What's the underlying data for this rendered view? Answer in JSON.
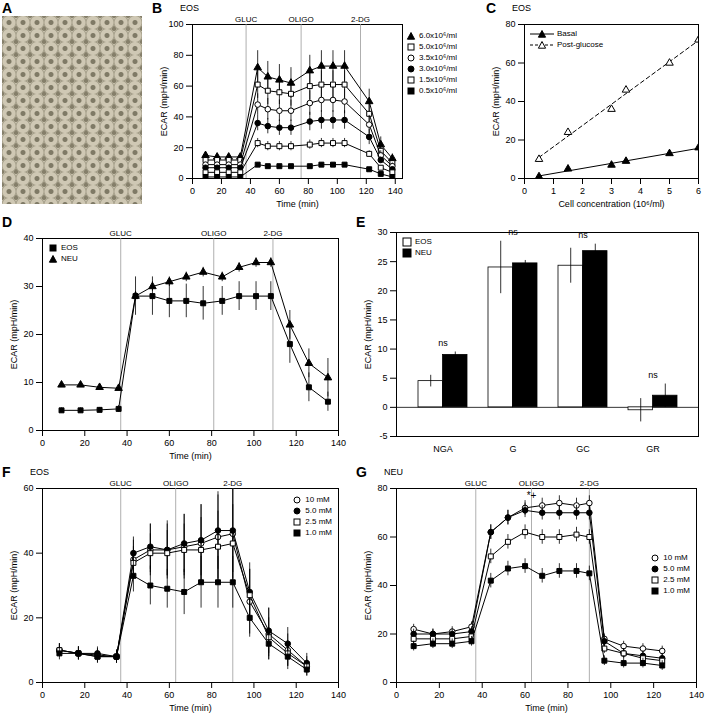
{
  "chart_data": [
    {
      "panel": "A",
      "type": "image"
    },
    {
      "panel": "B",
      "type": "line",
      "title": "EOS",
      "x_label": "Time (min)",
      "y_label": "ECAR (mpH/min)",
      "x": [
        9,
        17,
        25,
        33,
        45,
        52,
        60,
        68,
        81,
        89,
        97,
        105,
        122,
        130,
        138
      ],
      "xlim": [
        0,
        145
      ],
      "xticks": [
        0,
        20,
        40,
        60,
        80,
        100,
        120,
        140
      ],
      "ylim": [
        0,
        100
      ],
      "yticks": [
        0,
        20,
        40,
        60,
        80,
        100
      ],
      "phases": [
        {
          "label": "GLUC",
          "x": 37
        },
        {
          "label": "OLIGO",
          "x": 75
        },
        {
          "label": "2-DG",
          "x": 116
        }
      ],
      "legend": "right",
      "series": [
        {
          "name": "6.0x10⁶/ml",
          "color": "#000000",
          "marker": "triangle",
          "values": [
            15,
            14,
            14,
            14,
            72,
            66,
            64,
            62,
            70,
            73,
            73,
            73,
            50,
            22,
            13
          ],
          "errors": [
            1.5,
            1.5,
            1.5,
            1.5,
            11,
            10,
            10,
            10,
            10,
            10,
            10,
            10,
            8,
            5,
            3
          ]
        },
        {
          "name": "5.0x10⁶/ml",
          "color": "#000000",
          "marker": "square-open",
          "values": [
            12,
            12,
            12,
            12,
            61,
            57,
            56,
            55,
            60,
            61,
            61,
            61,
            42,
            18,
            10
          ],
          "errors": [
            1,
            1,
            1,
            1,
            9,
            9,
            8,
            8,
            9,
            9,
            9,
            9,
            7,
            4,
            2
          ]
        },
        {
          "name": "3.5x10⁶/ml",
          "color": "#000000",
          "marker": "circle-open",
          "values": [
            9,
            9,
            9,
            9,
            48,
            45,
            44,
            44,
            49,
            51,
            51,
            50,
            35,
            15,
            8
          ],
          "errors": [
            1,
            1,
            1,
            1,
            7,
            7,
            7,
            7,
            8,
            8,
            8,
            8,
            6,
            3,
            2
          ]
        },
        {
          "name": "3.0x10⁶/ml",
          "color": "#000000",
          "marker": "circle",
          "values": [
            7,
            7,
            7,
            7,
            36,
            34,
            33,
            33,
            37,
            38,
            38,
            38,
            27,
            12,
            6
          ],
          "errors": [
            1,
            1,
            1,
            1,
            5,
            5,
            5,
            5,
            6,
            6,
            6,
            6,
            5,
            2,
            1
          ]
        },
        {
          "name": "1.5x10⁶/ml",
          "color": "#000000",
          "marker": "square-open",
          "values": [
            4,
            4,
            4,
            4,
            23,
            21,
            21,
            21,
            22,
            23,
            23,
            23,
            16,
            7,
            4
          ],
          "errors": [
            0.5,
            0.5,
            0.5,
            0.5,
            3,
            3,
            3,
            3,
            3,
            3,
            3,
            3,
            2,
            1,
            0.5
          ]
        },
        {
          "name": "0.5x10⁶/ml",
          "color": "#000000",
          "marker": "square",
          "values": [
            1,
            1,
            1,
            1,
            9,
            8,
            8,
            8,
            8,
            9,
            9,
            9,
            6,
            3,
            1
          ],
          "errors": [
            0.3,
            0.3,
            0.3,
            0.3,
            1,
            1,
            1,
            1,
            1,
            1,
            1,
            1,
            1,
            0.5,
            0.3
          ]
        }
      ]
    },
    {
      "panel": "C",
      "type": "scatter",
      "title": "EOS",
      "x_label": "Cell concentration (10⁶/ml)",
      "y_label": "ECAR (mpH/min)",
      "x": [
        0.5,
        1.5,
        3,
        3.5,
        5,
        6
      ],
      "xlim": [
        0,
        6
      ],
      "xticks": [
        0,
        1,
        2,
        3,
        4,
        5,
        6
      ],
      "ylim": [
        0,
        80
      ],
      "yticks": [
        0,
        20,
        40,
        60,
        80
      ],
      "legend": "top-left",
      "series": [
        {
          "name": "Basal",
          "color": "#000000",
          "marker": "triangle",
          "line_style": "solid",
          "values": [
            1,
            5,
            7,
            9,
            13,
            16
          ]
        },
        {
          "name": "Post-glucose",
          "color": "#000000",
          "marker": "triangle-open",
          "line_style": "dashed",
          "values": [
            10,
            24,
            36,
            46,
            60,
            72
          ]
        }
      ]
    },
    {
      "panel": "D",
      "type": "line",
      "x_label": "Time (min)",
      "y_label": "ECAR (mpH/min)",
      "x": [
        9,
        18,
        27,
        36,
        44,
        52,
        60,
        68,
        76,
        85,
        93,
        101,
        108,
        117,
        126,
        135
      ],
      "xlim": [
        0,
        140
      ],
      "xticks": [
        0,
        20,
        40,
        60,
        80,
        100,
        120,
        140
      ],
      "ylim": [
        0,
        40
      ],
      "yticks": [
        0,
        10,
        20,
        30,
        40
      ],
      "phases": [
        {
          "label": "GLUC",
          "x": 37
        },
        {
          "label": "OLIGO",
          "x": 81
        },
        {
          "label": "2-DG",
          "x": 109
        }
      ],
      "legend": "top-left",
      "series": [
        {
          "name": "EOS",
          "color": "#000000",
          "marker": "square",
          "values": [
            4.2,
            4.2,
            4.3,
            4.5,
            28,
            28,
            27,
            27,
            26.5,
            27,
            28,
            28,
            28,
            18,
            9,
            6
          ],
          "errors": [
            0.5,
            0.5,
            0.5,
            0.7,
            4,
            4,
            3.5,
            3.5,
            3.5,
            3,
            3,
            3,
            3,
            4,
            3,
            2
          ]
        },
        {
          "name": "NEU",
          "color": "#000000",
          "marker": "triangle",
          "values": [
            9.5,
            9.5,
            9,
            8.8,
            28,
            30,
            31,
            32,
            33,
            32,
            34,
            35,
            35,
            22,
            14,
            11
          ],
          "errors": [
            0.5,
            0.5,
            0.5,
            0.5,
            1,
            1,
            1,
            1,
            1,
            1,
            1,
            1,
            1,
            3,
            3,
            4
          ]
        }
      ]
    },
    {
      "panel": "E",
      "type": "bar",
      "y_label": "ECAR (mpH/min)",
      "categories": [
        "NGA",
        "G",
        "GC",
        "GR"
      ],
      "ylim": [
        -5,
        30
      ],
      "yticks": [
        -5,
        0,
        5,
        10,
        15,
        20,
        25,
        30
      ],
      "legend": "top-left",
      "series": [
        {
          "name": "EOS",
          "color": "#ffffff",
          "values": [
            4.5,
            24,
            24.3,
            -0.5
          ],
          "errors": [
            1,
            4.5,
            3,
            2
          ]
        },
        {
          "name": "NEU",
          "color": "#000000",
          "values": [
            9,
            24.7,
            26.8,
            2
          ],
          "errors": [
            0.5,
            0.5,
            1.2,
            2
          ]
        }
      ],
      "annotations": [
        {
          "text": "ns",
          "category": "NGA"
        },
        {
          "text": "ns",
          "category": "G"
        },
        {
          "text": "ns",
          "category": "GC"
        },
        {
          "text": "ns",
          "category": "GR"
        }
      ]
    },
    {
      "panel": "F",
      "type": "line",
      "title": "EOS",
      "x_label": "Time (min)",
      "y_label": "ECAR (mpH/min)",
      "x": [
        8,
        17,
        26,
        35,
        43,
        51,
        59,
        67,
        75,
        83,
        90,
        98,
        107,
        116,
        125
      ],
      "xlim": [
        0,
        140
      ],
      "xticks": [
        0,
        20,
        40,
        60,
        80,
        100,
        120,
        140
      ],
      "ylim": [
        0,
        60
      ],
      "yticks": [
        0,
        20,
        40,
        60
      ],
      "phases": [
        {
          "label": "GLUC",
          "x": 37
        },
        {
          "label": "OLIGO",
          "x": 63
        },
        {
          "label": "2-DG",
          "x": 90
        }
      ],
      "legend": "top-right",
      "series": [
        {
          "name": "10 mM",
          "color": "#000000",
          "marker": "circle-open",
          "values": [
            10,
            9,
            8.5,
            8,
            38,
            41,
            41,
            42,
            43,
            45,
            46,
            25,
            15,
            10,
            5
          ],
          "errors": [
            2,
            2,
            2,
            2,
            6,
            8,
            9,
            10,
            12,
            13,
            14,
            10,
            8,
            5,
            3
          ]
        },
        {
          "name": "5.0 mM",
          "color": "#000000",
          "marker": "circle",
          "values": [
            10,
            9,
            9,
            8,
            40,
            42,
            41,
            43,
            44,
            47,
            47,
            28,
            16,
            12,
            6
          ],
          "errors": [
            2,
            2,
            2,
            2,
            5,
            7,
            8,
            9,
            11,
            12,
            13,
            9,
            7,
            5,
            3
          ]
        },
        {
          "name": "2.5 mM",
          "color": "#000000",
          "marker": "square-open",
          "values": [
            10,
            9,
            8,
            8,
            37,
            40,
            40,
            41,
            41,
            42,
            43,
            27,
            14,
            9,
            5
          ],
          "errors": [
            2,
            2,
            2,
            2,
            5,
            6,
            7,
            8,
            10,
            11,
            12,
            8,
            6,
            4,
            2
          ]
        },
        {
          "name": "1.0 mM",
          "color": "#000000",
          "marker": "square",
          "values": [
            9,
            9,
            8,
            8,
            33,
            30,
            29,
            28,
            31,
            31,
            31,
            20,
            12,
            8,
            4
          ],
          "errors": [
            2,
            2,
            2,
            2,
            5,
            6,
            6,
            7,
            8,
            8,
            8,
            6,
            5,
            4,
            2
          ]
        }
      ]
    },
    {
      "panel": "G",
      "type": "line",
      "title": "NEU",
      "x_label": "Time (min)",
      "y_label": "ECAR (mpH/min)",
      "x": [
        8,
        17,
        26,
        35,
        44,
        52,
        60,
        68,
        76,
        84,
        90,
        97,
        106,
        115,
        124
      ],
      "xlim": [
        0,
        140
      ],
      "xticks": [
        0,
        20,
        40,
        60,
        80,
        100,
        120,
        140
      ],
      "ylim": [
        0,
        80
      ],
      "yticks": [
        0,
        20,
        40,
        60,
        80
      ],
      "phases": [
        {
          "label": "GLUC",
          "x": 37
        },
        {
          "label": "OLIGO",
          "x": 63
        },
        {
          "label": "2-DG",
          "x": 90
        }
      ],
      "legend": "middle-right",
      "annotations": [
        {
          "text": "*+",
          "x": 63,
          "y": 77
        }
      ],
      "series": [
        {
          "name": "10 mM",
          "color": "#000000",
          "marker": "circle-open",
          "values": [
            22,
            20,
            21,
            23,
            62,
            68,
            72,
            73,
            74,
            73,
            74,
            18,
            15,
            14,
            13
          ],
          "errors": [
            2,
            2,
            2,
            2,
            3,
            3,
            3,
            3,
            3,
            3,
            3,
            2,
            2,
            2,
            2
          ]
        },
        {
          "name": "5.0 mM",
          "color": "#000000",
          "marker": "circle",
          "values": [
            20,
            20,
            20,
            21,
            62,
            68,
            71,
            70,
            70,
            70,
            70,
            17,
            12,
            11,
            10
          ],
          "errors": [
            2,
            2,
            2,
            2,
            3,
            3,
            3,
            3,
            3,
            3,
            3,
            2,
            2,
            2,
            2
          ]
        },
        {
          "name": "2.5 mM",
          "color": "#000000",
          "marker": "square-open",
          "values": [
            18,
            18,
            18,
            19,
            52,
            58,
            62,
            60,
            60,
            61,
            60,
            14,
            12,
            10,
            9
          ],
          "errors": [
            2,
            2,
            2,
            2,
            3,
            3,
            3,
            3,
            3,
            3,
            3,
            2,
            2,
            2,
            2
          ]
        },
        {
          "name": "1.0 mM",
          "color": "#000000",
          "marker": "square",
          "values": [
            15,
            16,
            16,
            17,
            42,
            47,
            48,
            44,
            46,
            46,
            45,
            9,
            8,
            8,
            7
          ],
          "errors": [
            2,
            2,
            2,
            2,
            3,
            3,
            3,
            3,
            3,
            3,
            3,
            2,
            2,
            2,
            2
          ]
        }
      ]
    }
  ]
}
